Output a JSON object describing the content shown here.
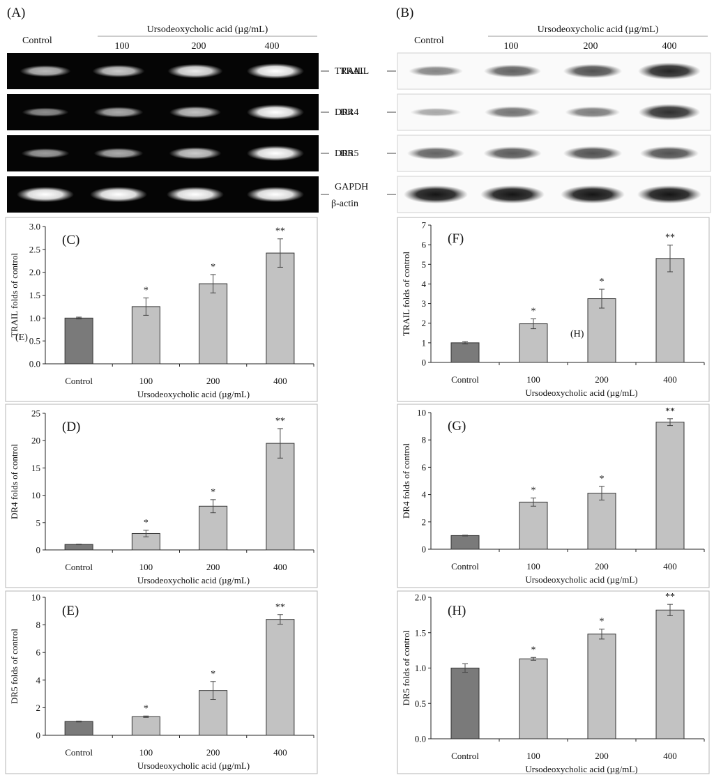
{
  "panel_labels": {
    "A": "(A)",
    "B": "(B)"
  },
  "gels": {
    "control_label": "Control",
    "treatment_label": "Ursodeoxycholic acid (µg/mL)",
    "doses": [
      "100",
      "200",
      "400"
    ],
    "A_rows": [
      "TRAIL",
      "DR4",
      "DR5",
      "GAPDH"
    ],
    "B_rows": [
      "TRAIL",
      "DR4",
      "DR5",
      "β-actin"
    ],
    "A_band_intensity": [
      [
        0.55,
        0.65,
        0.85,
        1.0
      ],
      [
        0.25,
        0.45,
        0.6,
        1.0
      ],
      [
        0.35,
        0.45,
        0.65,
        1.0
      ],
      [
        1.0,
        1.0,
        1.0,
        1.0
      ]
    ],
    "B_band_intensity": [
      [
        0.35,
        0.55,
        0.65,
        0.9
      ],
      [
        0.15,
        0.45,
        0.4,
        0.85
      ],
      [
        0.55,
        0.6,
        0.65,
        0.65
      ],
      [
        1.0,
        1.0,
        1.0,
        1.0
      ]
    ]
  },
  "colors": {
    "control_bar": "#7a7a7a",
    "treated_bar": "#c2c2c2",
    "gel_bg": "#050505",
    "band_dark": "#1a1a1a"
  },
  "stray_labels": [
    "(E)",
    "(H)"
  ],
  "chart_data": [
    {
      "id": "C",
      "type": "bar",
      "panel_label": "(C)",
      "categories": [
        "Control",
        "100",
        "200",
        "400"
      ],
      "values": [
        1.0,
        1.25,
        1.75,
        2.42
      ],
      "errors": [
        0.02,
        0.19,
        0.2,
        0.31
      ],
      "significance": [
        "",
        "*",
        "*",
        "**"
      ],
      "ylabel": "TRAIL folds of control",
      "xlabel": "Ursodeoxycholic acid (µg/mL)",
      "ylim": [
        0,
        3.0
      ],
      "yticks": [
        "0.0",
        "0.5",
        "1.0",
        "1.5",
        "2.0",
        "2.5",
        "3.0"
      ]
    },
    {
      "id": "D",
      "type": "bar",
      "panel_label": "(D)",
      "categories": [
        "Control",
        "100",
        "200",
        "400"
      ],
      "values": [
        1.0,
        3.0,
        8.0,
        19.5
      ],
      "errors": [
        0.05,
        0.6,
        1.2,
        2.7
      ],
      "significance": [
        "",
        "*",
        "*",
        "**"
      ],
      "ylabel": "DR4 folds of control",
      "xlabel": "Ursodeoxycholic acid (µg/mL)",
      "ylim": [
        0,
        25
      ],
      "yticks": [
        "0",
        "5",
        "10",
        "15",
        "20",
        "25"
      ]
    },
    {
      "id": "E",
      "type": "bar",
      "panel_label": "(E)",
      "categories": [
        "Control",
        "100",
        "200",
        "400"
      ],
      "values": [
        1.0,
        1.35,
        3.25,
        8.4
      ],
      "errors": [
        0.03,
        0.05,
        0.65,
        0.35
      ],
      "significance": [
        "",
        "*",
        "*",
        "**"
      ],
      "ylabel": "DR5 folds of control",
      "xlabel": "Ursodeoxycholic acid (µg/mL)",
      "ylim": [
        0,
        10
      ],
      "yticks": [
        "0",
        "2",
        "4",
        "6",
        "8",
        "10"
      ]
    },
    {
      "id": "F",
      "type": "bar",
      "panel_label": "(F)",
      "categories": [
        "Control",
        "100",
        "200",
        "400"
      ],
      "values": [
        1.0,
        1.97,
        3.25,
        5.3
      ],
      "errors": [
        0.06,
        0.25,
        0.48,
        0.68
      ],
      "significance": [
        "",
        "*",
        "*",
        "**"
      ],
      "ylabel": "TRAIL folds of control",
      "xlabel": "Ursodeoxycholic acid (µg/mL)",
      "ylim": [
        0,
        7
      ],
      "yticks": [
        "0",
        "1",
        "2",
        "3",
        "4",
        "5",
        "6",
        "7"
      ]
    },
    {
      "id": "G",
      "type": "bar",
      "panel_label": "(G)",
      "categories": [
        "Control",
        "100",
        "200",
        "400"
      ],
      "values": [
        1.0,
        3.45,
        4.1,
        9.3
      ],
      "errors": [
        0.03,
        0.3,
        0.5,
        0.25
      ],
      "significance": [
        "",
        "*",
        "*",
        "**"
      ],
      "ylabel": "DR4 folds of control",
      "xlabel": "Ursodeoxycholic acid (µg/mL)",
      "ylim": [
        0,
        10
      ],
      "yticks": [
        "0",
        "2",
        "4",
        "6",
        "8",
        "10"
      ]
    },
    {
      "id": "H",
      "type": "bar",
      "panel_label": "(H)",
      "categories": [
        "Control",
        "100",
        "200",
        "400"
      ],
      "values": [
        1.0,
        1.13,
        1.48,
        1.82
      ],
      "errors": [
        0.06,
        0.02,
        0.07,
        0.08
      ],
      "significance": [
        "",
        "*",
        "*",
        "**"
      ],
      "ylabel": "DR5 folds of control",
      "xlabel": "Ursodeoxycholic acid (µg/mL)",
      "ylim": [
        0,
        2.0
      ],
      "yticks": [
        "0.0",
        "0.5",
        "1.0",
        "1.5",
        "2.0"
      ]
    }
  ]
}
